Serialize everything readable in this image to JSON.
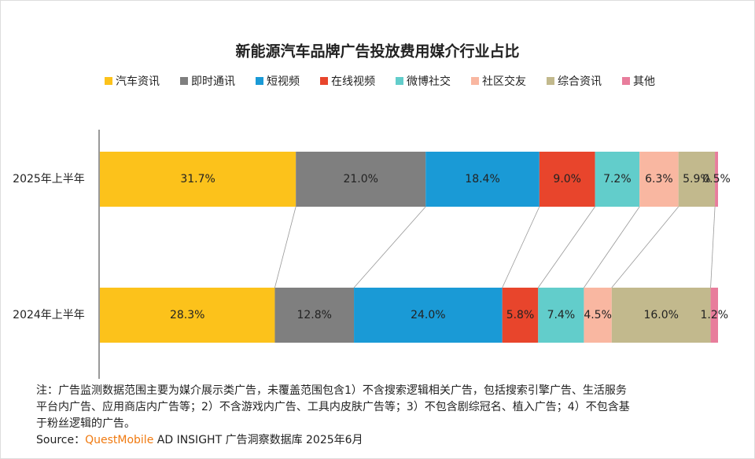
{
  "chart_data": {
    "type": "stacked-bar-100-horizontal",
    "title": "新能源汽车品牌广告投放费用媒介行业占比",
    "categories": [
      "2025年上半年",
      "2024年上半年"
    ],
    "series": [
      {
        "name": "汽车资讯",
        "color": "#fcc21b",
        "values": [
          31.7,
          28.3
        ],
        "value_labels": [
          "31.7%",
          "28.3%"
        ]
      },
      {
        "name": "即时通讯",
        "color": "#7f7f7f",
        "values": [
          21.0,
          12.8
        ],
        "value_labels": [
          "21.0%",
          "12.8%"
        ]
      },
      {
        "name": "短视频",
        "color": "#1a9ad6",
        "values": [
          18.4,
          24.0
        ],
        "value_labels": [
          "18.4%",
          "24.0%"
        ]
      },
      {
        "name": "在线视频",
        "color": "#e8452c",
        "values": [
          9.0,
          5.8
        ],
        "value_labels": [
          "9.0%",
          "5.8%"
        ]
      },
      {
        "name": "微博社交",
        "color": "#62cdcb",
        "values": [
          7.2,
          7.4
        ],
        "value_labels": [
          "7.2%",
          "7.4%"
        ]
      },
      {
        "name": "社区交友",
        "color": "#f9b7a1",
        "values": [
          6.3,
          4.5
        ],
        "value_labels": [
          "6.3%",
          "4.5%"
        ]
      },
      {
        "name": "综合资讯",
        "color": "#c2b98d",
        "values": [
          5.9,
          16.0
        ],
        "value_labels": [
          "5.9%",
          "16.0%"
        ]
      },
      {
        "name": "其他",
        "color": "#e87d9c",
        "values": [
          0.5,
          1.2
        ],
        "value_labels": [
          "0.5%",
          "1.2%"
        ]
      }
    ],
    "notes": [
      "注：广告监测数据范围主要为媒介展示类广告，未覆盖范围包含1）不含搜索逻辑相关广告，包括搜索引擎广告、生活服务",
      "平台内广告、应用商店内广告等；2）不含游戏内广告、工具内皮肤广告等；3）不包含剧综冠名、植入广告；4）不包含基",
      "于粉丝逻辑的广告。"
    ],
    "source": [
      "Source：",
      "QuestMobile",
      " AD INSIGHT 广告洞察数据库 2025年6月"
    ]
  }
}
